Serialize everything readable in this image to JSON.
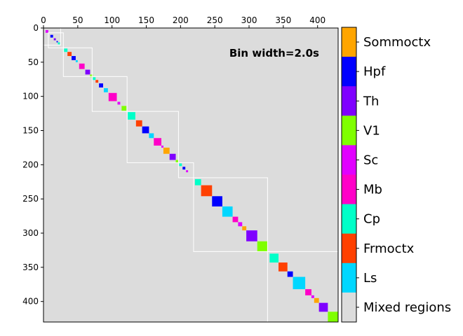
{
  "chart_data": {
    "type": "heatmap",
    "annotation": "Bin width=2.0s",
    "background_label": "Mixed regions",
    "xlim": [
      0,
      430
    ],
    "ylim": [
      430,
      0
    ],
    "x_ticks": [
      0,
      50,
      100,
      150,
      200,
      250,
      300,
      350,
      400
    ],
    "y_ticks": [
      0,
      50,
      100,
      150,
      200,
      250,
      300,
      350,
      400
    ],
    "legend": [
      {
        "label": "Sommoctx",
        "color": "#ffa500"
      },
      {
        "label": "Hpf",
        "color": "#0000ff"
      },
      {
        "label": "Th",
        "color": "#7f00ff"
      },
      {
        "label": "V1",
        "color": "#7fff00"
      },
      {
        "label": "Sc",
        "color": "#e100ff"
      },
      {
        "label": "Mb",
        "color": "#ff00c8"
      },
      {
        "label": "Cp",
        "color": "#00ffc8"
      },
      {
        "label": "Frmoctx",
        "color": "#ff4000"
      },
      {
        "label": "Ls",
        "color": "#00d7ff"
      },
      {
        "label": "Mixed regions",
        "color": "#dcdcdc"
      }
    ],
    "background_color": "#dcdcdc",
    "blocks": [
      {
        "start": 3,
        "end": 7,
        "region": "Sc"
      },
      {
        "start": 10,
        "end": 14,
        "region": "Hpf"
      },
      {
        "start": 15,
        "end": 18,
        "region": "Th"
      },
      {
        "start": 19,
        "end": 21,
        "region": "Hpf"
      },
      {
        "start": 21,
        "end": 24,
        "region": "Cp"
      },
      {
        "start": 30,
        "end": 35,
        "region": "Cp"
      },
      {
        "start": 35,
        "end": 41,
        "region": "Frmoctx"
      },
      {
        "start": 41,
        "end": 47,
        "region": "Hpf"
      },
      {
        "start": 47,
        "end": 50,
        "region": "Ls"
      },
      {
        "start": 52,
        "end": 60,
        "region": "Mb"
      },
      {
        "start": 61,
        "end": 68,
        "region": "Th"
      },
      {
        "start": 68,
        "end": 72,
        "region": "V1"
      },
      {
        "start": 72,
        "end": 76,
        "region": "Cp"
      },
      {
        "start": 76,
        "end": 80,
        "region": "Frmoctx"
      },
      {
        "start": 81,
        "end": 87,
        "region": "Hpf"
      },
      {
        "start": 88,
        "end": 94,
        "region": "Ls"
      },
      {
        "start": 95,
        "end": 107,
        "region": "Mb"
      },
      {
        "start": 108,
        "end": 112,
        "region": "Sc"
      },
      {
        "start": 114,
        "end": 121,
        "region": "V1"
      },
      {
        "start": 123,
        "end": 134,
        "region": "Cp"
      },
      {
        "start": 135,
        "end": 144,
        "region": "Frmoctx"
      },
      {
        "start": 144,
        "end": 154,
        "region": "Hpf"
      },
      {
        "start": 154,
        "end": 161,
        "region": "Ls"
      },
      {
        "start": 161,
        "end": 172,
        "region": "Mb"
      },
      {
        "start": 172,
        "end": 175,
        "region": "Sc"
      },
      {
        "start": 175,
        "end": 184,
        "region": "Sommoctx"
      },
      {
        "start": 184,
        "end": 193,
        "region": "Th"
      },
      {
        "start": 193,
        "end": 197,
        "region": "V1"
      },
      {
        "start": 198,
        "end": 202,
        "region": "Cp"
      },
      {
        "start": 203,
        "end": 207,
        "region": "Hpf"
      },
      {
        "start": 208,
        "end": 211,
        "region": "Sc"
      },
      {
        "start": 221,
        "end": 230,
        "region": "Cp"
      },
      {
        "start": 230,
        "end": 246,
        "region": "Frmoctx"
      },
      {
        "start": 246,
        "end": 261,
        "region": "Hpf"
      },
      {
        "start": 261,
        "end": 276,
        "region": "Ls"
      },
      {
        "start": 276,
        "end": 284,
        "region": "Mb"
      },
      {
        "start": 284,
        "end": 290,
        "region": "Sc"
      },
      {
        "start": 290,
        "end": 296,
        "region": "Sommoctx"
      },
      {
        "start": 296,
        "end": 312,
        "region": "Th"
      },
      {
        "start": 312,
        "end": 327,
        "region": "V1"
      },
      {
        "start": 330,
        "end": 343,
        "region": "Cp"
      },
      {
        "start": 343,
        "end": 356,
        "region": "Frmoctx"
      },
      {
        "start": 356,
        "end": 364,
        "region": "Hpf"
      },
      {
        "start": 364,
        "end": 382,
        "region": "Ls"
      },
      {
        "start": 382,
        "end": 391,
        "region": "Mb"
      },
      {
        "start": 391,
        "end": 395,
        "region": "Sc"
      },
      {
        "start": 395,
        "end": 402,
        "region": "Sommoctx"
      },
      {
        "start": 402,
        "end": 415,
        "region": "Th"
      },
      {
        "start": 415,
        "end": 430,
        "region": "V1"
      }
    ],
    "outline_boxes": [
      [
        0,
        25
      ],
      [
        7,
        29
      ],
      [
        29,
        71
      ],
      [
        71,
        122
      ],
      [
        122,
        197
      ],
      [
        197,
        219
      ],
      [
        219,
        327
      ],
      [
        327,
        430
      ]
    ]
  }
}
